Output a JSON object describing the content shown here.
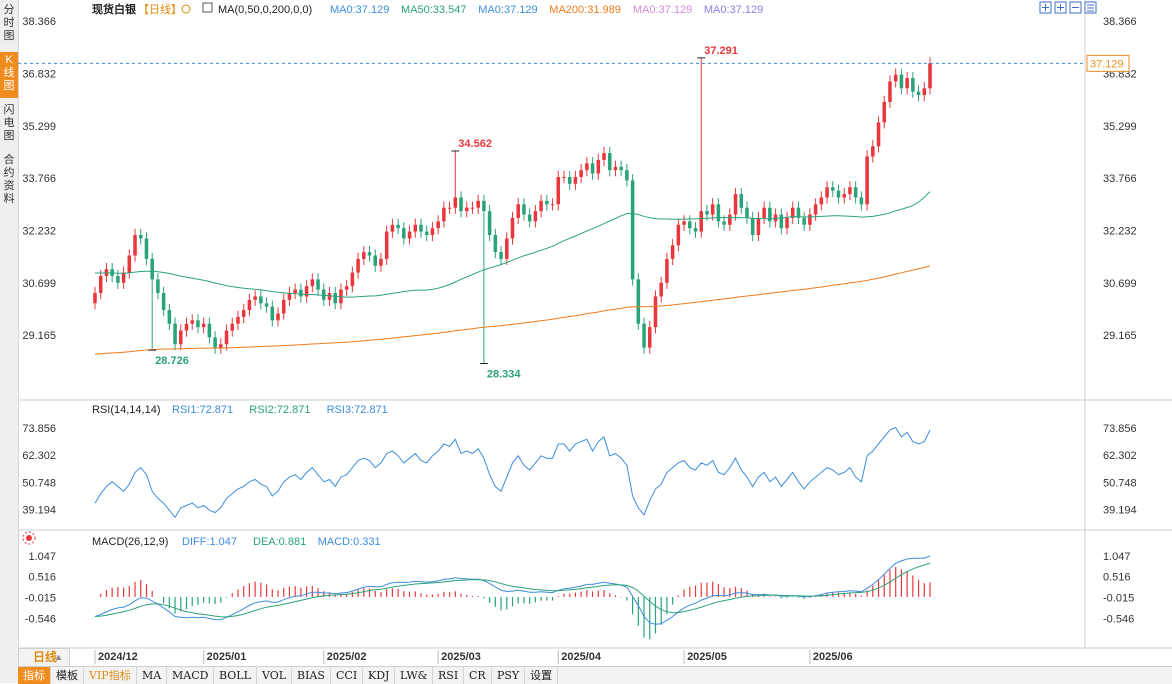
{
  "sidebar": {
    "tabs": [
      {
        "label": "分时图",
        "active": false
      },
      {
        "label": "K线图",
        "active": true
      },
      {
        "label": "闪电图",
        "active": false
      },
      {
        "label": "合约资料",
        "active": false
      }
    ]
  },
  "price_header": {
    "name": "现货白银",
    "period": "【日线】",
    "params": "MA(0,50,0,200,0,0)",
    "items": [
      {
        "text": "MA0:37.129",
        "color": "#3c8dde"
      },
      {
        "text": "MA50:33.547",
        "color": "#2aa37a"
      },
      {
        "text": "MA0:37.129",
        "color": "#3c8dde"
      },
      {
        "text": "MA200:31.989",
        "color": "#f07c1e"
      },
      {
        "text": "MA0:37.129",
        "color": "#d58ad8"
      },
      {
        "text": "MA0:37.129",
        "color": "#8a7ee0"
      }
    ]
  },
  "rsi_header": {
    "name": "RSI(14,14,14)",
    "items": [
      {
        "text": "RSI1:72.871",
        "color": "#3c8dde"
      },
      {
        "text": "RSI2:72.871",
        "color": "#2aa37a"
      },
      {
        "text": "RSI3:72.871",
        "color": "#3c8dde"
      }
    ]
  },
  "macd_header": {
    "name": "MACD(26,12,9)",
    "items": [
      {
        "text": "DIFF:1.047",
        "color": "#3c8dde"
      },
      {
        "text": "DEA:0.881",
        "color": "#2aa37a"
      },
      {
        "text": "MACD:0.331",
        "color": "#3c8dde"
      }
    ]
  },
  "toolbar_icons": [
    "crosshair-icon",
    "zoom-in-icon",
    "zoom-out-icon",
    "settings-icon"
  ],
  "period_tab": {
    "label": "日线"
  },
  "bottom_tabs": [
    {
      "label": "指标",
      "active": true,
      "vip": false
    },
    {
      "label": "模板",
      "active": false,
      "vip": false
    },
    {
      "label": "VIP指标",
      "active": false,
      "vip": true
    },
    {
      "label": "MA",
      "active": false,
      "vip": false
    },
    {
      "label": "MACD",
      "active": false,
      "vip": false
    },
    {
      "label": "BOLL",
      "active": false,
      "vip": false
    },
    {
      "label": "VOL",
      "active": false,
      "vip": false
    },
    {
      "label": "BIAS",
      "active": false,
      "vip": false
    },
    {
      "label": "CCI",
      "active": false,
      "vip": false
    },
    {
      "label": "KDJ",
      "active": false,
      "vip": false
    },
    {
      "label": "LW&",
      "active": false,
      "vip": false
    },
    {
      "label": "RSI",
      "active": false,
      "vip": false
    },
    {
      "label": "CR",
      "active": false,
      "vip": false
    },
    {
      "label": "PSY",
      "active": false,
      "vip": false
    },
    {
      "label": "设置",
      "active": false,
      "vip": false
    }
  ],
  "colors": {
    "up": "#e8383d",
    "down": "#2aa37a",
    "ma50": "#2aa37a",
    "ma200": "#f07c1e",
    "rsi": "#3c8dde",
    "diff": "#3c8dde",
    "dea": "#2aa37a",
    "current": "#f08c1e",
    "high_label": "#e8383d",
    "low_label": "#2aa37a"
  },
  "chart_data": {
    "type": "candlestick",
    "price": {
      "ylim": [
        27.5,
        38.4
      ],
      "yticks": [
        "38.366",
        "36.832",
        "35.299",
        "33.766",
        "32.232",
        "30.699",
        "29.165"
      ],
      "current_price": "37.129",
      "annotations": [
        {
          "label": "37.291",
          "index": 106,
          "value": 37.291,
          "kind": "high"
        },
        {
          "label": "34.562",
          "index": 63,
          "value": 34.562,
          "kind": "high"
        },
        {
          "label": "28.726",
          "index": 10,
          "value": 28.726,
          "kind": "low"
        },
        {
          "label": "28.334",
          "index": 68,
          "value": 28.334,
          "kind": "low"
        }
      ],
      "close": [
        30.4,
        30.9,
        31.1,
        30.9,
        30.7,
        31.0,
        31.5,
        32.1,
        32.0,
        31.4,
        30.8,
        30.4,
        29.9,
        29.5,
        28.9,
        29.3,
        29.5,
        29.6,
        29.4,
        29.5,
        29.1,
        28.8,
        28.9,
        29.3,
        29.5,
        29.7,
        29.9,
        30.2,
        30.3,
        30.1,
        30.0,
        29.6,
        29.8,
        30.2,
        30.4,
        30.5,
        30.3,
        30.6,
        30.8,
        30.5,
        30.2,
        30.4,
        30.1,
        30.5,
        30.6,
        31.0,
        31.4,
        31.6,
        31.5,
        31.2,
        31.4,
        32.2,
        32.4,
        32.3,
        32.0,
        32.2,
        32.4,
        32.2,
        32.1,
        32.3,
        32.5,
        32.9,
        32.9,
        33.2,
        32.8,
        32.9,
        32.9,
        33.1,
        32.8,
        32.1,
        31.6,
        31.4,
        32.0,
        32.6,
        33.0,
        32.7,
        32.5,
        32.8,
        33.1,
        33.0,
        33.0,
        33.8,
        33.8,
        33.6,
        33.8,
        34.0,
        34.2,
        33.9,
        34.3,
        34.5,
        34.0,
        34.1,
        34.0,
        33.7,
        30.8,
        29.5,
        28.8,
        29.4,
        30.3,
        30.7,
        31.4,
        31.8,
        32.4,
        32.5,
        32.3,
        32.2,
        32.8,
        32.7,
        33.0,
        32.5,
        32.4,
        32.7,
        33.3,
        32.9,
        32.6,
        32.1,
        32.6,
        32.9,
        32.5,
        32.7,
        32.3,
        32.6,
        32.9,
        32.6,
        32.4,
        32.7,
        33.0,
        33.2,
        33.5,
        33.4,
        33.2,
        33.3,
        33.5,
        33.2,
        33.0,
        34.4,
        34.7,
        35.4,
        36.0,
        36.6,
        36.8,
        36.4,
        36.7,
        36.3,
        36.2,
        36.4,
        37.13
      ]
    },
    "rsi": {
      "ylim": [
        34,
        78
      ],
      "yticks": [
        "73.856",
        "62.302",
        "50.748",
        "39.194"
      ],
      "values": [
        42,
        46,
        49,
        51,
        49,
        47,
        50,
        55,
        57,
        54,
        47,
        44,
        42,
        39,
        36,
        40,
        41,
        42,
        40,
        41,
        39,
        38,
        40,
        44,
        46,
        48,
        49,
        51,
        52,
        50,
        49,
        45,
        47,
        51,
        53,
        54,
        52,
        55,
        57,
        54,
        51,
        52,
        49,
        53,
        54,
        57,
        60,
        61,
        60,
        57,
        59,
        63,
        64,
        62,
        59,
        61,
        63,
        60,
        59,
        62,
        64,
        67,
        66,
        69,
        63,
        64,
        63,
        65,
        61,
        54,
        49,
        47,
        53,
        59,
        62,
        58,
        56,
        59,
        62,
        61,
        61,
        67,
        67,
        64,
        67,
        68,
        69,
        64,
        68,
        70,
        62,
        63,
        61,
        58,
        45,
        40,
        37,
        43,
        48,
        50,
        55,
        57,
        59,
        60,
        57,
        56,
        59,
        58,
        60,
        55,
        54,
        57,
        61,
        56,
        53,
        49,
        53,
        55,
        51,
        53,
        49,
        52,
        55,
        51,
        48,
        51,
        53,
        55,
        57,
        56,
        54,
        55,
        57,
        53,
        51,
        62,
        64,
        67,
        70,
        73,
        74,
        70,
        72,
        68,
        67,
        68,
        72.87
      ]
    },
    "macd": {
      "ylim": [
        -1.1,
        1.25
      ],
      "yticks": [
        "1.047",
        "0.516",
        "-0.015",
        "-0.546"
      ],
      "diff": [
        -0.5,
        -0.45,
        -0.38,
        -0.32,
        -0.28,
        -0.26,
        -0.2,
        -0.1,
        -0.02,
        -0.03,
        -0.1,
        -0.18,
        -0.28,
        -0.38,
        -0.5,
        -0.52,
        -0.53,
        -0.52,
        -0.53,
        -0.52,
        -0.55,
        -0.58,
        -0.58,
        -0.52,
        -0.45,
        -0.38,
        -0.3,
        -0.22,
        -0.15,
        -0.12,
        -0.1,
        -0.14,
        -0.13,
        -0.07,
        -0.02,
        0.02,
        0.03,
        0.08,
        0.12,
        0.12,
        0.1,
        0.1,
        0.08,
        0.1,
        0.11,
        0.15,
        0.2,
        0.25,
        0.27,
        0.26,
        0.26,
        0.32,
        0.36,
        0.38,
        0.37,
        0.38,
        0.4,
        0.39,
        0.38,
        0.39,
        0.41,
        0.45,
        0.46,
        0.49,
        0.47,
        0.46,
        0.45,
        0.45,
        0.42,
        0.34,
        0.26,
        0.17,
        0.14,
        0.15,
        0.17,
        0.15,
        0.12,
        0.12,
        0.13,
        0.12,
        0.11,
        0.17,
        0.21,
        0.22,
        0.25,
        0.28,
        0.32,
        0.32,
        0.35,
        0.38,
        0.35,
        0.33,
        0.3,
        0.25,
        0.02,
        -0.22,
        -0.5,
        -0.66,
        -0.7,
        -0.68,
        -0.6,
        -0.5,
        -0.38,
        -0.28,
        -0.21,
        -0.16,
        -0.08,
        -0.03,
        0.03,
        0.04,
        0.03,
        0.05,
        0.1,
        0.11,
        0.1,
        0.06,
        0.06,
        0.07,
        0.05,
        0.05,
        0.02,
        0.02,
        0.03,
        0.02,
        0.0,
        0.01,
        0.03,
        0.06,
        0.1,
        0.12,
        0.13,
        0.14,
        0.16,
        0.15,
        0.13,
        0.22,
        0.32,
        0.44,
        0.58,
        0.73,
        0.86,
        0.92,
        0.97,
        0.99,
        0.99,
        0.99,
        1.047
      ]
    },
    "x_labels": [
      {
        "label": "2024/12",
        "index": 0
      },
      {
        "label": "2025/01",
        "index": 19
      },
      {
        "label": "2025/02",
        "index": 40
      },
      {
        "label": "2025/03",
        "index": 60
      },
      {
        "label": "2025/04",
        "index": 81
      },
      {
        "label": "2025/05",
        "index": 103
      },
      {
        "label": "2025/06",
        "index": 125
      }
    ]
  }
}
